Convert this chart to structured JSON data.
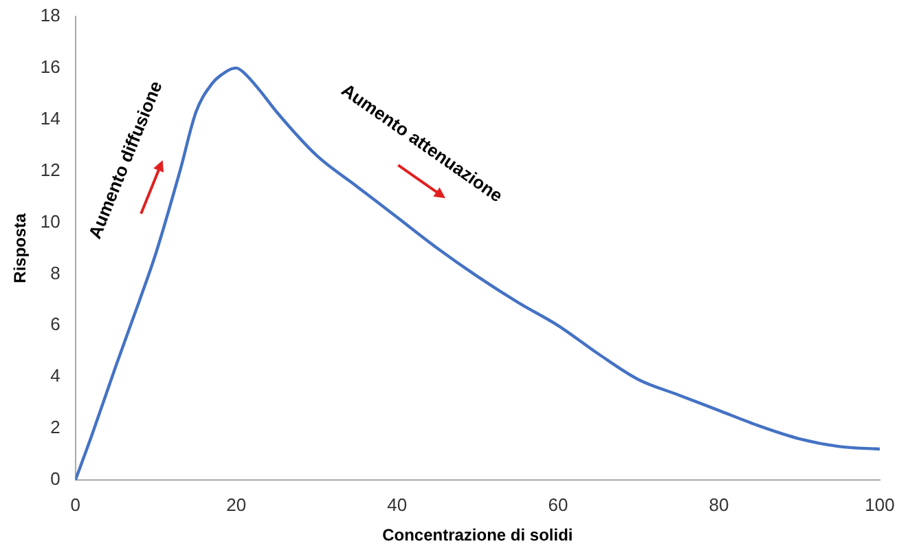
{
  "chart_data": {
    "type": "line",
    "xlabel": "Concentrazione di solidi",
    "ylabel": "Risposta",
    "x": [
      0,
      2,
      5,
      8,
      10,
      13,
      15,
      17,
      18,
      20,
      21,
      23,
      25,
      30,
      35,
      40,
      45,
      50,
      55,
      60,
      65,
      70,
      75,
      80,
      85,
      90,
      95,
      100
    ],
    "series": [
      {
        "color": "#4472c4",
        "values": [
          0,
          1.7,
          4.4,
          7.0,
          8.8,
          12,
          14.3,
          15.4,
          15.7,
          16,
          15.8,
          15.1,
          14.3,
          12.6,
          11.4,
          10.2,
          9,
          7.9,
          6.9,
          6,
          4.9,
          3.9,
          3.3,
          2.7,
          2.1,
          1.6,
          1.3,
          1.2
        ]
      }
    ],
    "xlim": [
      0,
      100
    ],
    "xticks": [
      0,
      20,
      40,
      60,
      80,
      100
    ],
    "ylim": [
      0,
      18
    ],
    "yticks": [
      0,
      2,
      4,
      6,
      8,
      10,
      12,
      14,
      16,
      18
    ],
    "grid": false,
    "legend": false,
    "marker": "none",
    "line_style": "solid",
    "annotations": [
      "Aumento diffusione",
      "Aumento attenuazione"
    ]
  }
}
